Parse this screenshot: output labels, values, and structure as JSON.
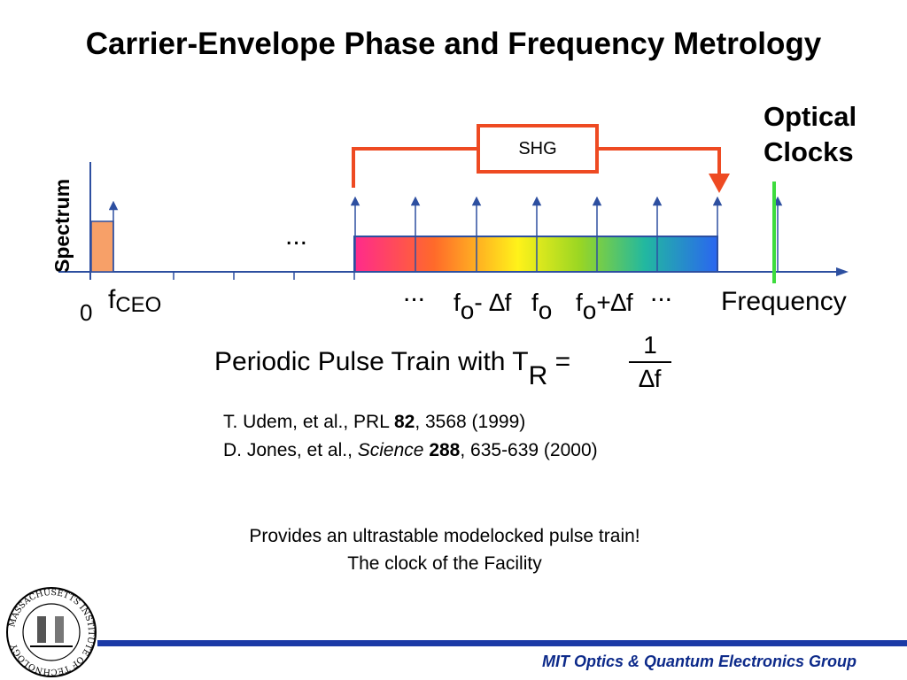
{
  "title": "Carrier-Envelope Phase and Frequency Metrology",
  "optical_clocks": {
    "line1": "Optical",
    "line2": "Clocks"
  },
  "axis": {
    "y_label": "Spectrum",
    "x_label": "Frequency",
    "origin": "0"
  },
  "shg_label": "SHG",
  "ellipsis": "...",
  "labels": {
    "fceo_main": "f",
    "fceo_sub": "CEO",
    "fo_minus_main": "f",
    "fo_minus_sub": "o",
    "fo_minus_rest": "- ∆f",
    "fo_main": "f",
    "fo_sub": "o",
    "fo_plus_main": "f",
    "fo_plus_sub": "o",
    "fo_plus_rest": "+∆f"
  },
  "pulse_train": {
    "text": "Periodic Pulse Train with T",
    "sub": "R",
    "equals": "=",
    "numerator": "1",
    "denominator": "∆f"
  },
  "references": [
    {
      "authors": "T. Udem, et al., PRL ",
      "volume": "82",
      "rest": ", 3568 (1999)"
    },
    {
      "authors": "D. Jones, et al., ",
      "journal": "Science",
      "volume": "288",
      "rest": ", 635-639 (2000)"
    }
  ],
  "provides": {
    "line1": "Provides an ultrastable modelocked pulse train!",
    "line2": "The clock of the Facility"
  },
  "footer": "MIT Optics & Quantum Electronics Group",
  "logo": {
    "text": "MASSACHUSETTS INSTITUTE OF TECHNOLOGY"
  },
  "colors": {
    "axis": "#2d4fa0",
    "shg_bracket": "#ee4a22",
    "optical_clock_line": "#3ddc3d",
    "ceo_block": "#f7a068",
    "footer_rule": "#1b3aa6",
    "footer_text": "#0d2a8a"
  }
}
